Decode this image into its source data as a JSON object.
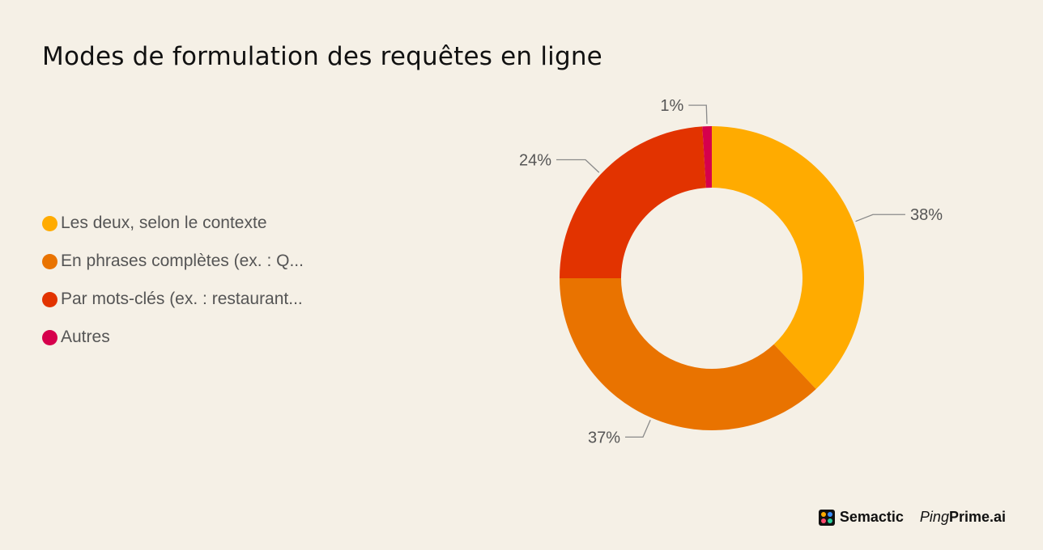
{
  "chart_data": {
    "type": "pie",
    "variant": "donut",
    "title": "Modes de formulation des requêtes en ligne",
    "categories": [
      "Les deux, selon le contexte",
      "En phrases complètes (ex. : Q...",
      "Par mots-clés (ex. : restaurant...",
      "Autres"
    ],
    "values": [
      38,
      37,
      24,
      1
    ],
    "data_labels": [
      "38%",
      "37%",
      "24%",
      "1%"
    ],
    "colors": [
      "#FFAB00",
      "#E97300",
      "#E23300",
      "#D6004C"
    ],
    "legend_position": "left"
  },
  "logos": {
    "semactic": "Semactic",
    "pingprime_light": "Ping",
    "pingprime_bold": "Prime.ai",
    "semactic_icon_colors": [
      "#FFAB00",
      "#3A8DFF",
      "#FF4A6E",
      "#2BD1A0"
    ]
  }
}
